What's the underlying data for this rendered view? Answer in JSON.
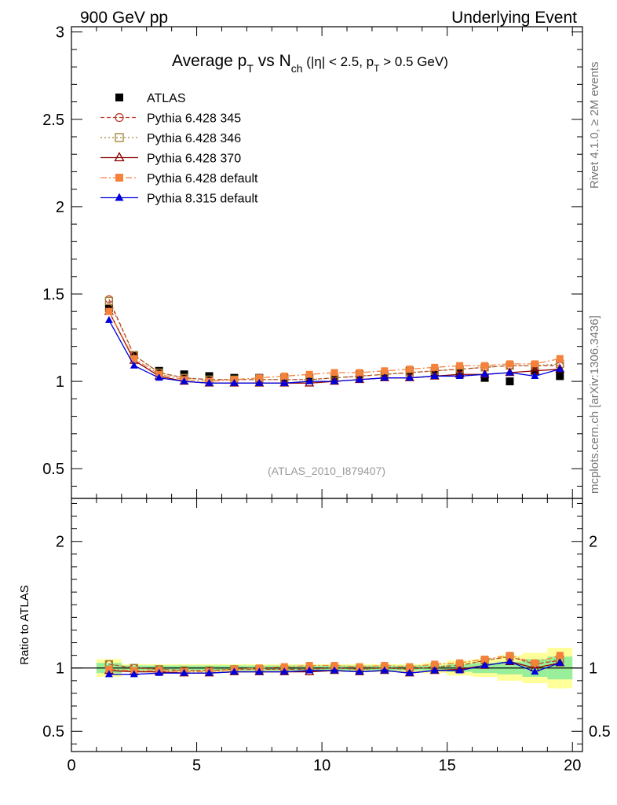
{
  "header": {
    "left": "900 GeV pp",
    "right": "Underlying Event"
  },
  "side_labels": {
    "top": "Rivet 4.1.0, ≥ 2M events",
    "bottom": "mcplots.cern.ch [arXiv:1306.3436]"
  },
  "title": {
    "main": "Average p",
    "main_sub": "T",
    "vs": " vs N",
    "vs_sub": "ch",
    "cut": " (|η| < 2.5, p",
    "cut_sub": "T",
    "cut_end": " > 0.5 GeV)"
  },
  "analysis_label": "(ATLAS_2010_I879407)",
  "ratio_ylabel": "Ratio to ATLAS",
  "chart_data": [
    {
      "type": "scatter",
      "panel": "main",
      "xlim": [
        0,
        20.4
      ],
      "ylim": [
        0.33,
        3.03
      ],
      "yticks": [
        0.5,
        1,
        1.5,
        2,
        2.5,
        3
      ],
      "ytick_labels": [
        "0.5",
        "1",
        "1.5",
        "2",
        "2.5",
        "3"
      ],
      "x": [
        1.5,
        2.5,
        3.5,
        4.5,
        5.5,
        6.5,
        7.5,
        8.5,
        9.5,
        10.5,
        11.5,
        12.5,
        13.5,
        14.5,
        15.5,
        16.5,
        17.5,
        18.5,
        19.5
      ],
      "series": [
        {
          "name": "ATLAS",
          "color": "#000000",
          "marker": "square-filled",
          "dash": "",
          "values": [
            1.42,
            1.15,
            1.06,
            1.04,
            1.03,
            1.02,
            1.02,
            1.02,
            1.02,
            1.02,
            1.04,
            1.04,
            1.06,
            1.05,
            1.05,
            1.02,
            1.0,
            1.06,
            1.03
          ]
        },
        {
          "name": "Pythia 6.428 345",
          "color": "#c0392b",
          "marker": "circle-open",
          "dash": "5,3",
          "values": [
            1.47,
            1.15,
            1.05,
            1.02,
            1.01,
            1.01,
            1.01,
            1.01,
            1.01,
            1.02,
            1.03,
            1.04,
            1.05,
            1.06,
            1.07,
            1.08,
            1.09,
            1.09,
            1.09
          ]
        },
        {
          "name": "Pythia 6.428 346",
          "color": "#a08030",
          "marker": "square-open",
          "dash": "2,3",
          "values": [
            1.46,
            1.15,
            1.05,
            1.02,
            1.01,
            1.01,
            1.01,
            1.01,
            1.01,
            1.02,
            1.03,
            1.04,
            1.05,
            1.06,
            1.07,
            1.08,
            1.09,
            1.09,
            1.1
          ]
        },
        {
          "name": "Pythia 6.428 370",
          "color": "#8b0000",
          "marker": "triangle-open",
          "dash": "",
          "values": [
            1.4,
            1.12,
            1.03,
            1.0,
            0.99,
            0.99,
            0.99,
            0.99,
            0.99,
            1.0,
            1.01,
            1.02,
            1.02,
            1.03,
            1.04,
            1.04,
            1.05,
            1.06,
            1.07
          ]
        },
        {
          "name": "Pythia 6.428 default",
          "color": "#f5813a",
          "marker": "square-filled",
          "dash": "8,3,2,3",
          "values": [
            1.4,
            1.13,
            1.04,
            1.01,
            1.0,
            1.01,
            1.02,
            1.03,
            1.04,
            1.05,
            1.05,
            1.06,
            1.07,
            1.08,
            1.09,
            1.09,
            1.1,
            1.1,
            1.13
          ]
        },
        {
          "name": "Pythia 8.315 default",
          "color": "#0000dd",
          "marker": "triangle-filled",
          "dash": "",
          "values": [
            1.35,
            1.09,
            1.02,
            1.0,
            0.99,
            0.99,
            0.99,
            0.99,
            1.0,
            1.0,
            1.01,
            1.02,
            1.02,
            1.03,
            1.03,
            1.04,
            1.05,
            1.03,
            1.07
          ]
        }
      ]
    },
    {
      "type": "scatter",
      "panel": "ratio",
      "ylabel": "Ratio to ATLAS",
      "xlabel": "",
      "xlim": [
        0,
        20.4
      ],
      "ylim": [
        0.34,
        2.34
      ],
      "xticks": [
        0,
        5,
        10,
        15,
        20
      ],
      "xtick_labels": [
        "0",
        "5",
        "10",
        "15",
        "20"
      ],
      "yticks": [
        0.5,
        1,
        2
      ],
      "ytick_labels": [
        "0.5",
        "1",
        "2"
      ],
      "x": [
        1.5,
        2.5,
        3.5,
        4.5,
        5.5,
        6.5,
        7.5,
        8.5,
        9.5,
        10.5,
        11.5,
        12.5,
        13.5,
        14.5,
        15.5,
        16.5,
        17.5,
        18.5,
        19.5
      ],
      "band_yellow": [
        0.07,
        0.03,
        0.03,
        0.03,
        0.03,
        0.03,
        0.03,
        0.03,
        0.03,
        0.03,
        0.03,
        0.03,
        0.03,
        0.04,
        0.06,
        0.07,
        0.1,
        0.12,
        0.16
      ],
      "band_green": [
        0.04,
        0.02,
        0.02,
        0.02,
        0.02,
        0.02,
        0.02,
        0.02,
        0.02,
        0.02,
        0.02,
        0.02,
        0.02,
        0.02,
        0.03,
        0.04,
        0.05,
        0.07,
        0.09
      ],
      "series": [
        {
          "name": "Pythia 6.428 345",
          "color": "#c0392b",
          "marker": "circle-open",
          "dash": "5,3",
          "values": [
            1.03,
            1.0,
            0.99,
            0.98,
            0.98,
            0.99,
            0.99,
            0.99,
            0.99,
            1.0,
            0.99,
            1.0,
            0.99,
            1.01,
            1.02,
            1.06,
            1.09,
            1.03,
            1.06
          ]
        },
        {
          "name": "Pythia 6.428 346",
          "color": "#a08030",
          "marker": "square-open",
          "dash": "2,3",
          "values": [
            1.03,
            1.0,
            0.99,
            0.98,
            0.98,
            0.99,
            0.99,
            0.99,
            0.99,
            1.0,
            0.99,
            1.0,
            0.99,
            1.01,
            1.02,
            1.06,
            1.09,
            1.03,
            1.07
          ]
        },
        {
          "name": "Pythia 6.428 370",
          "color": "#8b0000",
          "marker": "triangle-open",
          "dash": "",
          "values": [
            0.98,
            0.97,
            0.97,
            0.96,
            0.96,
            0.97,
            0.97,
            0.97,
            0.97,
            0.98,
            0.97,
            0.98,
            0.96,
            0.98,
            0.99,
            1.02,
            1.05,
            1.0,
            1.04
          ]
        },
        {
          "name": "Pythia 6.428 default",
          "color": "#f5813a",
          "marker": "square-filled",
          "dash": "8,3,2,3",
          "values": [
            0.99,
            0.98,
            0.98,
            0.97,
            0.97,
            0.99,
            1.0,
            1.01,
            1.02,
            1.02,
            1.01,
            1.02,
            1.01,
            1.03,
            1.04,
            1.07,
            1.1,
            1.04,
            1.1
          ]
        },
        {
          "name": "Pythia 8.315 default",
          "color": "#0000dd",
          "marker": "triangle-filled",
          "dash": "",
          "values": [
            0.95,
            0.95,
            0.96,
            0.96,
            0.96,
            0.97,
            0.97,
            0.97,
            0.98,
            0.98,
            0.97,
            0.98,
            0.96,
            0.98,
            0.98,
            1.02,
            1.05,
            0.97,
            1.04
          ]
        }
      ]
    }
  ]
}
